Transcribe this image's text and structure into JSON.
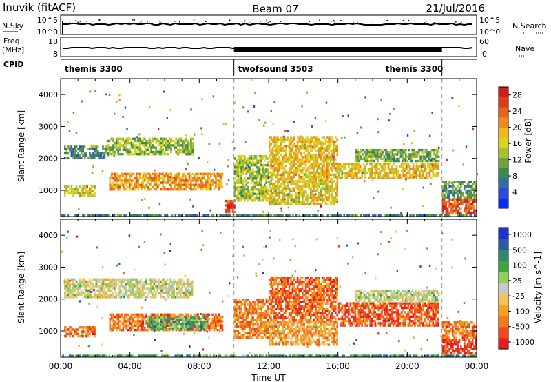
{
  "header": {
    "station": "Inuvik (fitACF)",
    "beam": "Beam 07",
    "date": "21/Jul/2016"
  },
  "panels": {
    "nsky": {
      "left_label": "N.Sky",
      "right_label": "N.Search",
      "left_ticks": [
        "10^5",
        "10^0"
      ],
      "right_ticks": [
        "10^5",
        "10^0"
      ]
    },
    "freq": {
      "left_label_top": "Freq.",
      "left_label_unit": "[MHz]",
      "right_label": "Nave",
      "left_ticks": [
        "18",
        "8"
      ],
      "right_ticks": [
        "60",
        "0"
      ]
    },
    "cpid": {
      "label": "CPID",
      "segments": [
        {
          "name": "themis 3300",
          "start_hour": 0,
          "end_hour": 10
        },
        {
          "name": "twofsound 3503",
          "start_hour": 10,
          "end_hour": 22
        },
        {
          "name": "themis 3300",
          "start_hour": 22,
          "end_hour": 24
        }
      ]
    }
  },
  "chart_data": [
    {
      "type": "heatmap",
      "title": "",
      "xlabel": "Time UT",
      "ylabel": "Slant Range [km]",
      "xlim_hours": [
        0,
        24
      ],
      "ylim": [
        180,
        4500
      ],
      "x_ticks": [
        "00:00",
        "04:00",
        "08:00",
        "12:00",
        "16:00",
        "20:00",
        "00:00"
      ],
      "y_ticks": [
        "1000",
        "2000",
        "3000",
        "4000"
      ],
      "colorbar": {
        "label": "Power [dB]",
        "ticks": [
          "4",
          "8",
          "12",
          "16",
          "20",
          "24",
          "28"
        ],
        "range": [
          0,
          30
        ],
        "colors": [
          "#0a2ef0",
          "#2a4ad8",
          "#2e6fa8",
          "#3b8a4e",
          "#6fa23c",
          "#a8c22e",
          "#d8d41a",
          "#f4b81a",
          "#f08a1a",
          "#e8641c",
          "#e03c1c",
          "#d21c1c"
        ]
      },
      "echo_regions": [
        {
          "t0": 0.2,
          "t1": 2.7,
          "r0": 2050,
          "r1": 2400,
          "level": 0.28
        },
        {
          "t0": 2.7,
          "t1": 7.6,
          "r0": 2150,
          "r1": 2650,
          "level": 0.42
        },
        {
          "t0": 0.2,
          "t1": 2.0,
          "r0": 850,
          "r1": 1150,
          "level": 0.55
        },
        {
          "t0": 2.8,
          "t1": 9.3,
          "r0": 1000,
          "r1": 1550,
          "level": 0.7
        },
        {
          "t0": 9.5,
          "t1": 10.0,
          "r0": 350,
          "r1": 700,
          "level": 0.9
        },
        {
          "t0": 10.0,
          "t1": 12.0,
          "r0": 700,
          "r1": 2100,
          "level": 0.45
        },
        {
          "t0": 12.0,
          "t1": 16.0,
          "r0": 1300,
          "r1": 2700,
          "level": 0.62
        },
        {
          "t0": 12.0,
          "t1": 16.0,
          "r0": 600,
          "r1": 1300,
          "level": 0.55
        },
        {
          "t0": 16.0,
          "t1": 21.8,
          "r0": 1400,
          "r1": 1850,
          "level": 0.6
        },
        {
          "t0": 17.0,
          "t1": 21.8,
          "r0": 1900,
          "r1": 2300,
          "level": 0.35
        },
        {
          "t0": 22.0,
          "t1": 24.0,
          "r0": 300,
          "r1": 750,
          "level": 0.88
        },
        {
          "t0": 22.0,
          "t1": 24.0,
          "r0": 800,
          "r1": 1300,
          "level": 0.3
        },
        {
          "t0": 0.0,
          "t1": 24.0,
          "r0": 200,
          "r1": 260,
          "level": 0.25
        }
      ]
    },
    {
      "type": "heatmap",
      "title": "",
      "xlabel": "Time UT",
      "ylabel": "Slant Range [km]",
      "xlim_hours": [
        0,
        24
      ],
      "ylim": [
        180,
        4500
      ],
      "x_ticks": [
        "00:00",
        "04:00",
        "08:00",
        "12:00",
        "16:00",
        "20:00",
        "00:00"
      ],
      "y_ticks": [
        "1000",
        "2000",
        "3000",
        "4000"
      ],
      "colorbar": {
        "label": "Velocity [m s^-1]",
        "ticks": [
          "1000",
          "500",
          "100",
          "25",
          "-25",
          "-100",
          "-500",
          "-1000"
        ],
        "range": [
          -1000,
          1000
        ],
        "colors": [
          "#e81c1c",
          "#f04a1c",
          "#f47a1c",
          "#f4a41c",
          "#f4c45a",
          "#c8c8c8",
          "#8cd25a",
          "#3ca83c",
          "#2e8a6e",
          "#2e5aa8",
          "#1c34c8"
        ]
      },
      "echo_regions": [
        {
          "t0": 0.2,
          "t1": 7.6,
          "r0": 2050,
          "r1": 2650,
          "level": 0.5
        },
        {
          "t0": 0.2,
          "t1": 2.0,
          "r0": 850,
          "r1": 1150,
          "level": 0.2
        },
        {
          "t0": 2.8,
          "t1": 9.3,
          "r0": 1000,
          "r1": 1550,
          "level": 0.18
        },
        {
          "t0": 5.0,
          "t1": 8.5,
          "r0": 1100,
          "r1": 1450,
          "level": 0.7
        },
        {
          "t0": 10.0,
          "t1": 12.0,
          "r0": 800,
          "r1": 2000,
          "level": 0.22
        },
        {
          "t0": 12.0,
          "t1": 16.0,
          "r0": 1300,
          "r1": 2700,
          "level": 0.15
        },
        {
          "t0": 12.0,
          "t1": 16.0,
          "r0": 600,
          "r1": 1300,
          "level": 0.3
        },
        {
          "t0": 16.0,
          "t1": 21.8,
          "r0": 1200,
          "r1": 1900,
          "level": 0.12
        },
        {
          "t0": 17.0,
          "t1": 21.8,
          "r0": 1900,
          "r1": 2300,
          "level": 0.5
        },
        {
          "t0": 22.0,
          "t1": 24.0,
          "r0": 300,
          "r1": 750,
          "level": 0.05
        },
        {
          "t0": 22.0,
          "t1": 24.0,
          "r0": 800,
          "r1": 1300,
          "level": 0.2
        },
        {
          "t0": 0.0,
          "t1": 24.0,
          "r0": 200,
          "r1": 260,
          "level": 0.72
        }
      ]
    }
  ]
}
